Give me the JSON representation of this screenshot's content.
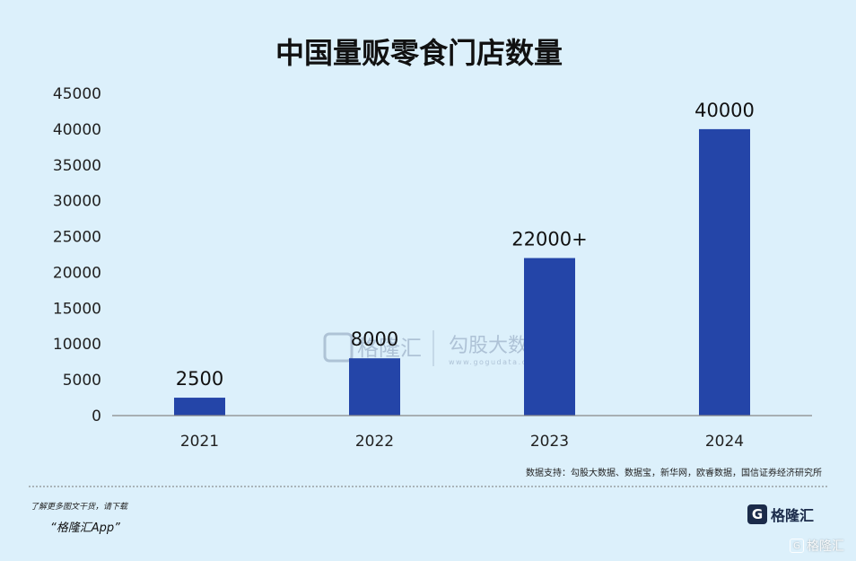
{
  "chart_data": {
    "type": "bar",
    "title": "中国量贩零食门店数量",
    "categories": [
      "2021",
      "2022",
      "2023",
      "2024"
    ],
    "values": [
      2500,
      8000,
      22000,
      40000
    ],
    "data_labels": [
      "2500",
      "8000",
      "22000+",
      "40000"
    ],
    "yticks": [
      "0",
      "5000",
      "10000",
      "15000",
      "20000",
      "25000",
      "30000",
      "35000",
      "40000",
      "45000"
    ],
    "ylim": [
      0,
      45000
    ],
    "xlabel": "",
    "ylabel": "",
    "grid": false,
    "bar_color": "#2445a8"
  },
  "source_note": "数据支持：勾股大数据、数据宝，新华网，欧睿数据，国信证券经济研究所",
  "footer": {
    "tip": "了解更多图文干货，请下载",
    "app": "“格隆汇App”"
  },
  "brand": {
    "icon": "gelonghui-logo-icon",
    "name": "格隆汇"
  },
  "watermark": {
    "brand": "格隆汇",
    "data_brand": "勾股大数据",
    "url": "www.gogudata.com"
  },
  "colors": {
    "background": "#dcf0fb",
    "bar": "#2445a8",
    "axis": "#888888"
  }
}
